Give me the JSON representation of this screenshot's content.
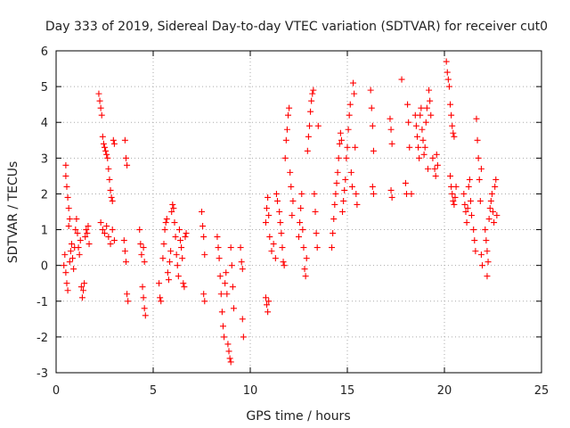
{
  "chart_data": {
    "type": "scatter",
    "title": "Day 333 of 2019, Sidereal Day-to-day VTEC variation (SDTVAR) for receiver cut0",
    "xlabel": "GPS time / hours",
    "ylabel": "SDTVAR / TECUs",
    "xlim": [
      0,
      25
    ],
    "ylim": [
      -3,
      6
    ],
    "x_ticks": [
      "0",
      "5",
      "10",
      "15",
      "20",
      "25"
    ],
    "y_ticks": [
      "-3",
      "-2",
      "-1",
      "0",
      "1",
      "2",
      "3",
      "4",
      "5",
      "6"
    ],
    "grid": true,
    "marker": "+",
    "color": "#ff0000",
    "series": [
      {
        "name": "SDTVAR",
        "points": [
          [
            0.4,
            0.0
          ],
          [
            0.45,
            0.3
          ],
          [
            0.5,
            2.8
          ],
          [
            0.5,
            2.5
          ],
          [
            0.55,
            2.2
          ],
          [
            0.6,
            1.9
          ],
          [
            0.65,
            1.6
          ],
          [
            0.5,
            -0.2
          ],
          [
            0.55,
            -0.5
          ],
          [
            0.6,
            -0.7
          ],
          [
            0.7,
            0.1
          ],
          [
            0.75,
            0.4
          ],
          [
            0.8,
            0.6
          ],
          [
            0.65,
            1.1
          ],
          [
            0.7,
            1.3
          ],
          [
            0.85,
            0.2
          ],
          [
            0.9,
            -0.1
          ],
          [
            0.95,
            0.5
          ],
          [
            1.0,
            1.0
          ],
          [
            1.05,
            1.3
          ],
          [
            1.1,
            0.9
          ],
          [
            1.15,
            0.5
          ],
          [
            1.2,
            0.3
          ],
          [
            1.25,
            0.7
          ],
          [
            1.3,
            -0.6
          ],
          [
            1.35,
            -0.9
          ],
          [
            1.4,
            -0.7
          ],
          [
            1.45,
            -0.5
          ],
          [
            1.5,
            0.8
          ],
          [
            1.55,
            1.0
          ],
          [
            1.6,
            0.9
          ],
          [
            1.65,
            1.1
          ],
          [
            1.7,
            0.6
          ],
          [
            2.2,
            4.8
          ],
          [
            2.25,
            4.6
          ],
          [
            2.3,
            4.4
          ],
          [
            2.35,
            4.2
          ],
          [
            2.4,
            3.6
          ],
          [
            2.45,
            3.4
          ],
          [
            2.5,
            3.3
          ],
          [
            2.55,
            3.2
          ],
          [
            2.6,
            3.1
          ],
          [
            2.65,
            3.0
          ],
          [
            2.7,
            2.7
          ],
          [
            2.75,
            2.4
          ],
          [
            2.8,
            2.1
          ],
          [
            2.85,
            1.9
          ],
          [
            2.9,
            1.8
          ],
          [
            2.95,
            3.5
          ],
          [
            3.0,
            3.4
          ],
          [
            2.3,
            1.2
          ],
          [
            2.4,
            1.0
          ],
          [
            2.5,
            0.9
          ],
          [
            2.6,
            1.1
          ],
          [
            2.7,
            0.8
          ],
          [
            2.8,
            0.6
          ],
          [
            2.9,
            1.0
          ],
          [
            3.0,
            0.7
          ],
          [
            3.55,
            3.5
          ],
          [
            3.6,
            3.0
          ],
          [
            3.65,
            2.8
          ],
          [
            3.5,
            0.7
          ],
          [
            3.55,
            0.4
          ],
          [
            3.6,
            0.1
          ],
          [
            3.65,
            -0.8
          ],
          [
            3.7,
            -1.0
          ],
          [
            4.3,
            1.0
          ],
          [
            4.35,
            0.6
          ],
          [
            4.4,
            0.3
          ],
          [
            4.45,
            -0.6
          ],
          [
            4.5,
            -0.9
          ],
          [
            4.55,
            -1.2
          ],
          [
            4.6,
            -1.4
          ],
          [
            4.5,
            0.5
          ],
          [
            4.55,
            0.1
          ],
          [
            5.3,
            -0.5
          ],
          [
            5.35,
            -0.9
          ],
          [
            5.4,
            -1.0
          ],
          [
            5.5,
            0.2
          ],
          [
            5.55,
            0.6
          ],
          [
            5.6,
            1.0
          ],
          [
            5.65,
            1.2
          ],
          [
            5.7,
            1.3
          ],
          [
            5.75,
            -0.2
          ],
          [
            5.8,
            -0.4
          ],
          [
            5.85,
            0.1
          ],
          [
            5.9,
            0.4
          ],
          [
            5.95,
            1.5
          ],
          [
            6.0,
            1.7
          ],
          [
            6.05,
            1.6
          ],
          [
            6.1,
            1.2
          ],
          [
            6.15,
            0.8
          ],
          [
            6.2,
            0.3
          ],
          [
            6.25,
            0.0
          ],
          [
            6.3,
            -0.3
          ],
          [
            6.35,
            1.0
          ],
          [
            6.4,
            0.7
          ],
          [
            6.45,
            0.5
          ],
          [
            6.5,
            0.2
          ],
          [
            6.55,
            -0.5
          ],
          [
            6.6,
            -0.6
          ],
          [
            6.65,
            0.8
          ],
          [
            6.7,
            0.9
          ],
          [
            7.5,
            1.5
          ],
          [
            7.55,
            1.1
          ],
          [
            7.6,
            0.8
          ],
          [
            7.65,
            0.3
          ],
          [
            7.6,
            -0.8
          ],
          [
            7.65,
            -1.0
          ],
          [
            8.3,
            0.8
          ],
          [
            8.35,
            0.5
          ],
          [
            8.4,
            0.2
          ],
          [
            8.45,
            -0.3
          ],
          [
            8.5,
            -0.8
          ],
          [
            8.55,
            -1.3
          ],
          [
            8.6,
            -1.7
          ],
          [
            8.65,
            -2.0
          ],
          [
            8.7,
            -0.5
          ],
          [
            8.75,
            -0.2
          ],
          [
            8.8,
            -0.8
          ],
          [
            8.85,
            -2.2
          ],
          [
            8.9,
            -2.4
          ],
          [
            8.95,
            -2.6
          ],
          [
            9.0,
            -2.7
          ],
          [
            9.0,
            0.5
          ],
          [
            9.05,
            0.0
          ],
          [
            9.1,
            -0.6
          ],
          [
            9.15,
            -1.2
          ],
          [
            9.5,
            0.5
          ],
          [
            9.55,
            0.1
          ],
          [
            9.6,
            -0.1
          ],
          [
            9.6,
            -1.5
          ],
          [
            9.65,
            -2.0
          ],
          [
            10.8,
            -0.9
          ],
          [
            10.85,
            -1.1
          ],
          [
            10.9,
            -1.3
          ],
          [
            10.95,
            -1.0
          ],
          [
            10.8,
            1.2
          ],
          [
            10.85,
            1.6
          ],
          [
            10.9,
            1.9
          ],
          [
            10.95,
            1.4
          ],
          [
            11.0,
            0.8
          ],
          [
            11.1,
            0.4
          ],
          [
            11.2,
            0.6
          ],
          [
            11.3,
            0.2
          ],
          [
            11.35,
            2.0
          ],
          [
            11.4,
            1.8
          ],
          [
            11.5,
            1.5
          ],
          [
            11.55,
            1.2
          ],
          [
            11.6,
            0.9
          ],
          [
            11.65,
            0.5
          ],
          [
            11.7,
            0.1
          ],
          [
            11.75,
            0.0
          ],
          [
            11.8,
            3.0
          ],
          [
            11.85,
            3.5
          ],
          [
            11.9,
            3.8
          ],
          [
            11.95,
            4.2
          ],
          [
            12.0,
            4.4
          ],
          [
            12.05,
            2.6
          ],
          [
            12.1,
            2.2
          ],
          [
            12.15,
            1.4
          ],
          [
            12.2,
            1.8
          ],
          [
            12.5,
            0.8
          ],
          [
            12.55,
            1.2
          ],
          [
            12.6,
            1.6
          ],
          [
            12.65,
            2.0
          ],
          [
            12.7,
            1.0
          ],
          [
            12.75,
            0.5
          ],
          [
            12.8,
            -0.1
          ],
          [
            12.85,
            -0.3
          ],
          [
            12.9,
            0.2
          ],
          [
            12.95,
            3.2
          ],
          [
            13.0,
            3.6
          ],
          [
            13.05,
            3.9
          ],
          [
            13.1,
            4.3
          ],
          [
            13.15,
            4.6
          ],
          [
            13.2,
            4.8
          ],
          [
            13.25,
            4.9
          ],
          [
            13.3,
            2.0
          ],
          [
            13.35,
            1.5
          ],
          [
            13.4,
            0.9
          ],
          [
            13.45,
            0.5
          ],
          [
            13.5,
            3.9
          ],
          [
            14.2,
            0.5
          ],
          [
            14.25,
            0.9
          ],
          [
            14.3,
            1.3
          ],
          [
            14.35,
            1.7
          ],
          [
            14.4,
            2.0
          ],
          [
            14.45,
            2.3
          ],
          [
            14.5,
            2.6
          ],
          [
            14.55,
            3.0
          ],
          [
            14.6,
            3.4
          ],
          [
            14.65,
            3.7
          ],
          [
            14.7,
            3.5
          ],
          [
            14.75,
            1.5
          ],
          [
            14.8,
            1.8
          ],
          [
            14.85,
            2.1
          ],
          [
            14.9,
            2.4
          ],
          [
            14.95,
            3.0
          ],
          [
            15.0,
            3.3
          ],
          [
            15.05,
            3.8
          ],
          [
            15.1,
            4.2
          ],
          [
            15.15,
            4.5
          ],
          [
            15.2,
            2.6
          ],
          [
            15.25,
            2.2
          ],
          [
            15.3,
            5.1
          ],
          [
            15.35,
            4.8
          ],
          [
            15.4,
            3.3
          ],
          [
            15.45,
            2.0
          ],
          [
            15.5,
            1.7
          ],
          [
            16.2,
            4.9
          ],
          [
            16.25,
            4.4
          ],
          [
            16.3,
            3.9
          ],
          [
            16.35,
            3.2
          ],
          [
            16.3,
            2.2
          ],
          [
            16.35,
            2.0
          ],
          [
            17.2,
            4.1
          ],
          [
            17.25,
            3.8
          ],
          [
            17.3,
            3.4
          ],
          [
            17.25,
            2.1
          ],
          [
            17.3,
            1.9
          ],
          [
            17.8,
            5.2
          ],
          [
            18.0,
            2.3
          ],
          [
            18.05,
            2.0
          ],
          [
            18.1,
            4.5
          ],
          [
            18.15,
            4.0
          ],
          [
            18.2,
            3.3
          ],
          [
            18.3,
            2.0
          ],
          [
            18.5,
            4.2
          ],
          [
            18.55,
            3.9
          ],
          [
            18.6,
            3.6
          ],
          [
            18.65,
            3.3
          ],
          [
            18.7,
            3.0
          ],
          [
            18.75,
            4.2
          ],
          [
            18.8,
            4.4
          ],
          [
            18.85,
            3.8
          ],
          [
            18.9,
            3.5
          ],
          [
            18.95,
            3.1
          ],
          [
            19.0,
            3.3
          ],
          [
            19.05,
            4.0
          ],
          [
            19.1,
            4.4
          ],
          [
            19.15,
            2.7
          ],
          [
            19.2,
            4.9
          ],
          [
            19.25,
            4.6
          ],
          [
            19.3,
            4.2
          ],
          [
            19.4,
            3.0
          ],
          [
            19.5,
            2.7
          ],
          [
            19.55,
            2.5
          ],
          [
            19.6,
            3.1
          ],
          [
            19.65,
            2.8
          ],
          [
            20.1,
            5.7
          ],
          [
            20.15,
            5.4
          ],
          [
            20.2,
            5.2
          ],
          [
            20.25,
            5.0
          ],
          [
            20.3,
            4.5
          ],
          [
            20.35,
            4.2
          ],
          [
            20.4,
            3.9
          ],
          [
            20.45,
            3.7
          ],
          [
            20.5,
            3.6
          ],
          [
            20.3,
            2.5
          ],
          [
            20.35,
            2.2
          ],
          [
            20.4,
            2.0
          ],
          [
            20.45,
            1.8
          ],
          [
            20.5,
            1.7
          ],
          [
            20.55,
            1.9
          ],
          [
            20.6,
            2.2
          ],
          [
            21.0,
            2.0
          ],
          [
            21.05,
            1.7
          ],
          [
            21.1,
            1.5
          ],
          [
            21.15,
            1.2
          ],
          [
            21.2,
            1.6
          ],
          [
            21.25,
            2.2
          ],
          [
            21.3,
            2.4
          ],
          [
            21.35,
            1.8
          ],
          [
            21.4,
            1.4
          ],
          [
            21.5,
            1.0
          ],
          [
            21.55,
            0.7
          ],
          [
            21.6,
            0.4
          ],
          [
            21.65,
            4.1
          ],
          [
            21.7,
            3.5
          ],
          [
            21.75,
            3.0
          ],
          [
            21.8,
            2.4
          ],
          [
            21.85,
            1.8
          ],
          [
            21.9,
            2.7
          ],
          [
            21.9,
            0.3
          ],
          [
            21.95,
            0.0
          ],
          [
            22.1,
            1.0
          ],
          [
            22.15,
            0.7
          ],
          [
            22.2,
            0.4
          ],
          [
            22.25,
            0.1
          ],
          [
            22.2,
            -0.3
          ],
          [
            22.3,
            1.3
          ],
          [
            22.35,
            1.6
          ],
          [
            22.4,
            1.8
          ],
          [
            22.45,
            2.0
          ],
          [
            22.5,
            1.5
          ],
          [
            22.55,
            1.2
          ],
          [
            22.6,
            2.2
          ],
          [
            22.65,
            2.4
          ],
          [
            22.7,
            1.4
          ]
        ]
      }
    ]
  }
}
